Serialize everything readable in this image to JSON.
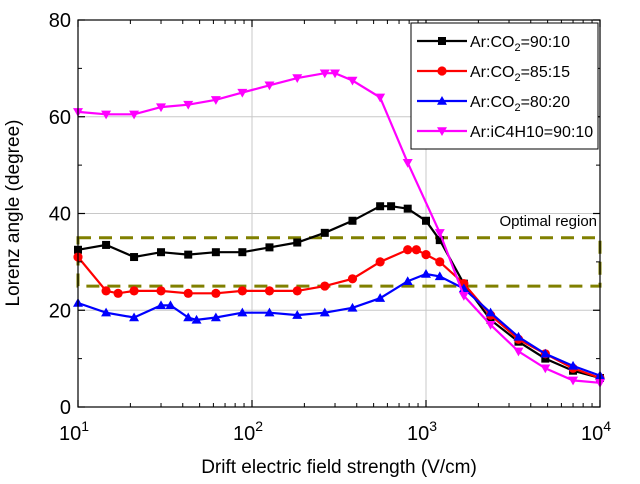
{
  "chart_data": {
    "type": "line",
    "title": "",
    "xlabel": "Drift electric field strength (V/cm)",
    "ylabel": "Lorenz angle (degree)",
    "xscale": "log",
    "xlim": [
      10,
      10000
    ],
    "ylim": [
      0,
      80
    ],
    "grid": true,
    "legend_position": "top-right",
    "x_ticks": [
      {
        "value": 10,
        "base": "10",
        "exp": "1"
      },
      {
        "value": 100,
        "base": "10",
        "exp": "2"
      },
      {
        "value": 1000,
        "base": "10",
        "exp": "3"
      },
      {
        "value": 10000,
        "base": "10",
        "exp": "4"
      }
    ],
    "y_ticks": [
      0,
      20,
      40,
      60,
      80
    ],
    "series": [
      {
        "name": "Ar:CO2=90:10",
        "legend": {
          "prefix": "Ar:CO",
          "sub": "2",
          "suffix": "=90:10"
        },
        "color": "#000000",
        "marker": "square",
        "x": [
          10,
          14.5,
          21,
          30,
          43,
          62,
          88,
          126,
          182,
          262,
          378,
          545,
          630,
          785,
          1000,
          1200,
          1650,
          2350,
          3400,
          4850,
          7000,
          10000
        ],
        "y": [
          32.5,
          33.5,
          31,
          32,
          31.5,
          32,
          32,
          33,
          34,
          36,
          38.5,
          41.5,
          41.5,
          41,
          38.5,
          34.5,
          25.5,
          18,
          13.5,
          10,
          7.5,
          6
        ]
      },
      {
        "name": "Ar:CO2=85:15",
        "legend": {
          "prefix": "Ar:CO",
          "sub": "2",
          "suffix": "=85:15"
        },
        "color": "#ff0000",
        "marker": "circle",
        "x": [
          10,
          14.5,
          17,
          21,
          30,
          43,
          62,
          88,
          126,
          182,
          262,
          378,
          545,
          785,
          880,
          1000,
          1200,
          1650,
          2350,
          3400,
          4850,
          7000,
          10000
        ],
        "y": [
          31,
          24,
          23.5,
          24,
          24,
          23.5,
          23.5,
          24,
          24,
          24,
          25,
          26.5,
          30,
          32.5,
          32.5,
          31.5,
          30,
          25.5,
          19,
          14,
          11,
          8,
          6
        ]
      },
      {
        "name": "Ar:CO2=80:20",
        "legend": {
          "prefix": "Ar:CO",
          "sub": "2",
          "suffix": "=80:20"
        },
        "color": "#0000ff",
        "marker": "triangle-up",
        "x": [
          10,
          14.5,
          21,
          30,
          34,
          43,
          48,
          62,
          88,
          126,
          182,
          262,
          378,
          545,
          785,
          1000,
          1200,
          1650,
          2350,
          3400,
          4850,
          7000,
          10000
        ],
        "y": [
          21.5,
          19.5,
          18.5,
          21,
          21,
          18.5,
          18,
          18.5,
          19.5,
          19.5,
          19,
          19.5,
          20.5,
          22.5,
          26,
          27.5,
          27,
          24.5,
          19.5,
          14.5,
          11,
          8.5,
          6.5
        ]
      },
      {
        "name": "Ar:iC4H10=90:10",
        "legend": {
          "prefix": "Ar:iC4H10=90:10",
          "sub": "",
          "suffix": ""
        },
        "color": "#ff00ff",
        "marker": "triangle-down",
        "x": [
          10,
          14.5,
          21,
          30,
          43,
          62,
          88,
          126,
          182,
          262,
          300,
          378,
          545,
          785,
          1200,
          1650,
          2350,
          3400,
          4850,
          7000,
          10000
        ],
        "y": [
          61,
          60.5,
          60.5,
          62,
          62.5,
          63.5,
          65,
          66.5,
          68,
          69,
          69,
          67.5,
          64,
          50.5,
          36,
          23,
          17,
          11.5,
          8,
          5.5,
          5
        ]
      }
    ],
    "annotations": [
      {
        "text": "Optimal region",
        "y_low": 25,
        "y_high": 35,
        "color": "#808000",
        "style": "dashed"
      }
    ]
  }
}
